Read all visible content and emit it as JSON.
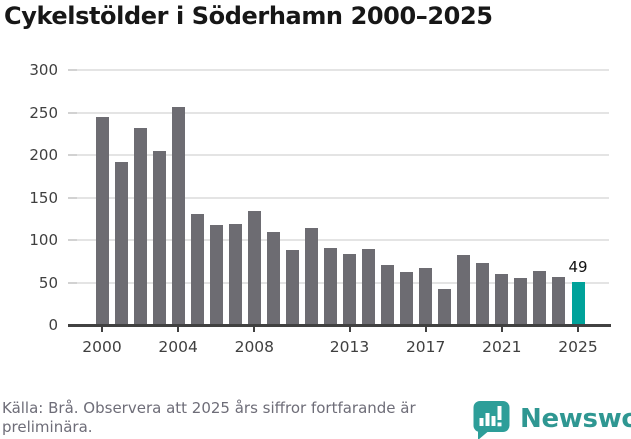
{
  "title": "Cykelstölder i Söderhamn 2000–2025",
  "chart_data": {
    "type": "bar",
    "title": "Cykelstölder i Söderhamn 2000–2025",
    "xlabel": "",
    "ylabel": "",
    "categories": [
      2000,
      2001,
      2002,
      2003,
      2004,
      2005,
      2006,
      2007,
      2008,
      2009,
      2010,
      2011,
      2012,
      2013,
      2014,
      2015,
      2016,
      2017,
      2018,
      2019,
      2020,
      2021,
      2022,
      2023,
      2024,
      2025
    ],
    "values": [
      243,
      191,
      231,
      204,
      255,
      130,
      117,
      118,
      133,
      108,
      87,
      113,
      90,
      82,
      88,
      69,
      61,
      66,
      41,
      81,
      72,
      59,
      54,
      62,
      55,
      49
    ],
    "ylim": [
      0,
      300
    ],
    "yticks": [
      0,
      50,
      100,
      150,
      200,
      250,
      300
    ],
    "xtick_labels": [
      "2000",
      "2004",
      "2008",
      "2013",
      "2017",
      "2021",
      "2025"
    ],
    "grid": true,
    "legend_position": "none",
    "bar_color": "#6d6c72",
    "highlight_year": 2025,
    "highlight_color": "#00a29a",
    "annotation": {
      "year": 2025,
      "label": "49"
    }
  },
  "footer": {
    "line1": "Källa: Brå. Observera att 2025 års siffror fortfarande är",
    "line2": "preliminära."
  },
  "branding": {
    "logo_text": "Newsworthy",
    "logo_color": "#2f9792"
  }
}
